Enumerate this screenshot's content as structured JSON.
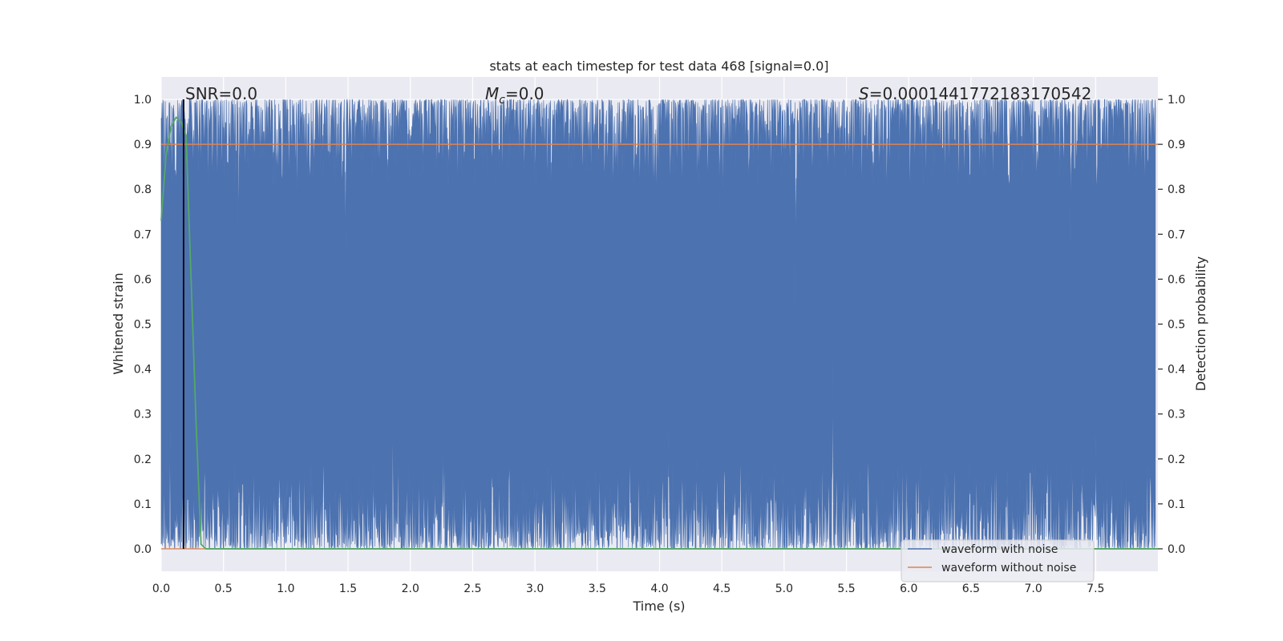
{
  "chart_data": {
    "type": "line",
    "title": "stats at each timestep for test data 468 [signal=0.0]",
    "xlabel": "Time (s)",
    "ylabel_left": "Whitened strain",
    "ylabel_right": "Detection probability",
    "xlim": [
      0.0,
      8.0
    ],
    "ylim": [
      -0.05,
      1.05
    ],
    "x_ticks": [
      0.0,
      0.5,
      1.0,
      1.5,
      2.0,
      2.5,
      3.0,
      3.5,
      4.0,
      4.5,
      5.0,
      5.5,
      6.0,
      6.5,
      7.0,
      7.5
    ],
    "x_tick_labels": [
      "0.0",
      "0.5",
      "1.0",
      "1.5",
      "2.0",
      "2.5",
      "3.0",
      "3.5",
      "4.0",
      "4.5",
      "5.0",
      "5.5",
      "6.0",
      "6.5",
      "7.0",
      "7.5"
    ],
    "y_ticks": [
      0.0,
      0.1,
      0.2,
      0.3,
      0.4,
      0.5,
      0.6,
      0.7,
      0.8,
      0.9,
      1.0
    ],
    "y_tick_labels": [
      "0.0",
      "0.1",
      "0.2",
      "0.3",
      "0.4",
      "0.5",
      "0.6",
      "0.7",
      "0.8",
      "0.9",
      "1.0"
    ],
    "grid": true,
    "legend_position": "lower-right",
    "annotations": {
      "snr": "SNR=0.0",
      "mc_symbol": "M",
      "mc_sub": "c",
      "mc_value": "=0.0",
      "s_symbol": "S",
      "s_value": "=0.0001441772183170542"
    },
    "vertical_marker_x": 0.18,
    "threshold": {
      "y": 0.9,
      "color": "#dd8452"
    },
    "series": [
      {
        "name": "waveform with noise",
        "color": "#4c72b0",
        "style": "dense noise band",
        "envelope_low": 0.0,
        "envelope_high": 1.0,
        "upper_dips": [
          {
            "x": 0.62,
            "y": 0.64
          },
          {
            "x": 1.48,
            "y": 0.62
          },
          {
            "x": 3.13,
            "y": 0.72
          },
          {
            "x": 4.48,
            "y": 0.71
          },
          {
            "x": 5.09,
            "y": 0.53
          },
          {
            "x": 7.3,
            "y": 0.67
          }
        ],
        "lower_spikes": [
          {
            "x": 0.07,
            "y": 0.32
          },
          {
            "x": 1.86,
            "y": 0.38
          },
          {
            "x": 2.26,
            "y": 0.28
          },
          {
            "x": 4.07,
            "y": 0.32
          },
          {
            "x": 5.39,
            "y": 0.43
          },
          {
            "x": 5.95,
            "y": 0.27
          },
          {
            "x": 7.5,
            "y": 0.26
          }
        ]
      },
      {
        "name": "waveform without noise",
        "color": "#dd8452",
        "x": [
          0.0,
          8.0
        ],
        "y": [
          0.0,
          0.0
        ]
      },
      {
        "name": "detection probability",
        "color": "#55a868",
        "x": [
          0.0,
          0.04,
          0.08,
          0.12,
          0.16,
          0.2,
          0.24,
          0.28,
          0.32,
          0.36,
          0.4,
          8.0
        ],
        "y": [
          0.73,
          0.88,
          0.94,
          0.96,
          0.95,
          0.92,
          0.6,
          0.28,
          0.01,
          0.0,
          0.0,
          0.0
        ]
      }
    ]
  }
}
